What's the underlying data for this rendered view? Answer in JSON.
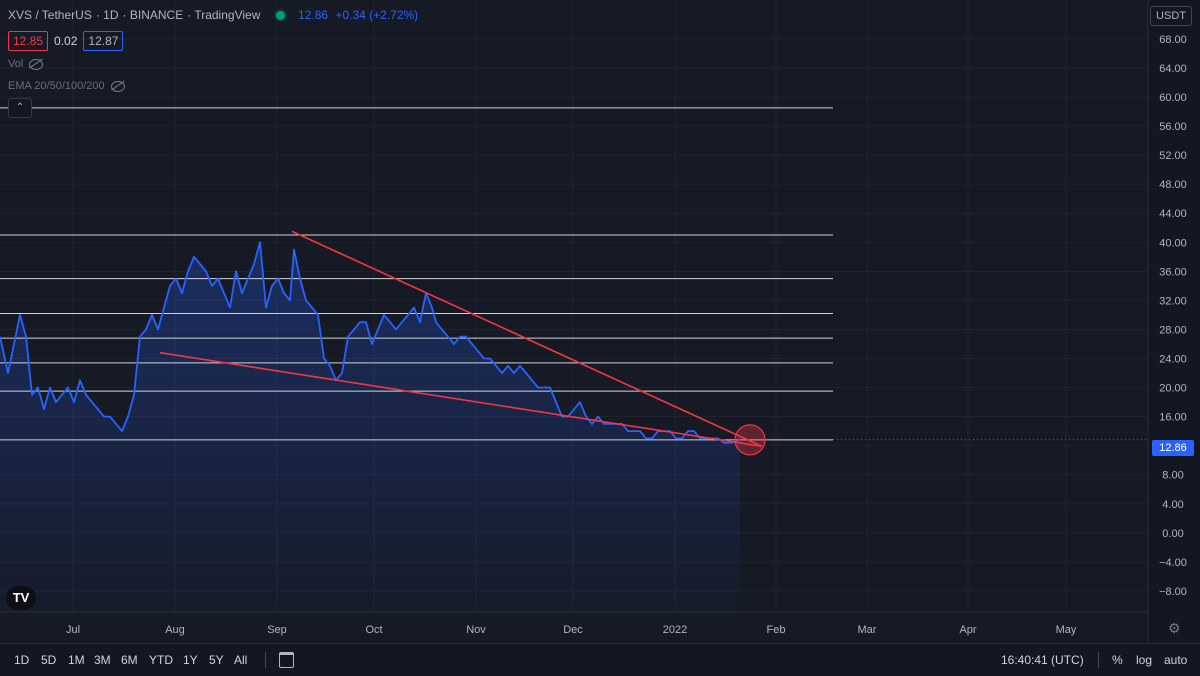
{
  "header": {
    "symbol": "XVS / TetherUS",
    "interval": "1D",
    "exchange": "BINANCE",
    "source": "TradingView",
    "last": "12.86",
    "change": "+0.34 (+2.72%)",
    "bid": "12.85",
    "spread": "0.02",
    "ask": "12.87",
    "ind_vol": "Vol",
    "ind_ema": "EMA 20/50/100/200",
    "currency": "USDT",
    "logo": "TV",
    "status_color": "#089981"
  },
  "colors": {
    "line": "#2962ff",
    "trend": "#f23645",
    "level": "#d1d4dc"
  },
  "chart_data": {
    "type": "line",
    "xlim": [
      0,
      1148
    ],
    "ylim": [
      -10.9,
      71.7
    ],
    "x_axis_labels": [
      {
        "label": "Jul",
        "x": 73
      },
      {
        "label": "Aug",
        "x": 175
      },
      {
        "label": "Sep",
        "x": 277
      },
      {
        "label": "Oct",
        "x": 374
      },
      {
        "label": "Nov",
        "x": 476
      },
      {
        "label": "Dec",
        "x": 573
      },
      {
        "label": "2022",
        "x": 675
      },
      {
        "label": "Feb",
        "x": 776
      },
      {
        "label": "Mar",
        "x": 867
      },
      {
        "label": "Apr",
        "x": 968
      },
      {
        "label": "May",
        "x": 1066
      }
    ],
    "y_ticks": [
      "68.00",
      "64.00",
      "60.00",
      "56.00",
      "52.00",
      "48.00",
      "44.00",
      "40.00",
      "36.00",
      "32.00",
      "28.00",
      "24.00",
      "20.00",
      "16.00",
      "12.00",
      "8.00",
      "4.00",
      "0.00",
      "−4.00",
      "−8.00"
    ],
    "y_tick_values": [
      68,
      64,
      60,
      56,
      52,
      48,
      44,
      40,
      36,
      32,
      28,
      24,
      20,
      16,
      12,
      8,
      4,
      0,
      -4,
      -8
    ],
    "current_price": 12.86,
    "current_price_label": "12.86",
    "series": [
      {
        "x": [
          0,
          8,
          14,
          20,
          26,
          32,
          38,
          44,
          50,
          56,
          62,
          68,
          74,
          80,
          86,
          92,
          98,
          104,
          110,
          116,
          122,
          128,
          134,
          140,
          146,
          152,
          158,
          164,
          170,
          176,
          182,
          188,
          194,
          200,
          206,
          212,
          218,
          224,
          230,
          236,
          242,
          248,
          254,
          260,
          266,
          272,
          278,
          284,
          290,
          294,
          300,
          306,
          312,
          318,
          324,
          330,
          336,
          342,
          348,
          354,
          360,
          366,
          372,
          378,
          384,
          390,
          396,
          402,
          408,
          414,
          420,
          426,
          432,
          436,
          442,
          448,
          454,
          460,
          466,
          472,
          478,
          484,
          490,
          496,
          502,
          508,
          514,
          520,
          526,
          532,
          538,
          544,
          550,
          556,
          562,
          568,
          574,
          580,
          586,
          592,
          598,
          604,
          610,
          616,
          622,
          628,
          634,
          640,
          646,
          652,
          658,
          664,
          670,
          676,
          682,
          688,
          694,
          700,
          706,
          712,
          718,
          724,
          730,
          736,
          740
        ],
        "y": [
          27,
          22,
          26,
          30,
          27,
          19,
          20,
          17,
          20,
          18,
          19,
          20,
          18,
          21,
          19,
          18,
          17,
          16,
          16,
          15,
          14,
          16,
          19,
          27,
          28,
          30,
          28,
          31,
          34,
          35,
          33,
          36,
          38,
          37,
          36,
          34,
          35,
          33,
          31,
          36,
          33,
          35,
          37,
          40,
          31,
          34,
          35,
          33,
          32,
          39,
          35,
          32,
          31,
          30,
          24,
          23,
          21,
          22,
          27,
          28,
          29,
          29,
          26,
          28,
          30,
          29,
          28,
          29,
          30,
          31,
          29,
          33,
          31,
          29,
          28,
          27,
          26,
          27,
          27,
          26,
          25,
          24,
          24,
          23,
          22,
          23,
          22,
          23,
          22,
          21,
          20,
          20,
          20,
          18,
          16,
          16,
          17,
          18,
          16,
          15,
          16,
          15,
          15,
          15,
          15,
          14,
          14,
          14,
          13,
          13,
          14,
          14,
          14,
          13,
          13,
          14,
          14,
          13,
          13,
          13,
          13,
          12.4,
          12.4,
          12.5,
          12.86
        ]
      }
    ],
    "levels": [
      58.5,
      41.0,
      35.0,
      30.2,
      26.8,
      23.4,
      19.5,
      12.8
    ],
    "trendlines": [
      {
        "from": [
          292,
          41.5
        ],
        "to": [
          762,
          11.9
        ]
      },
      {
        "from": [
          160,
          24.8
        ],
        "to": [
          762,
          11.9
        ]
      }
    ],
    "breakout_circle": {
      "x": 750,
      "y": 12.8
    }
  },
  "range_buttons": [
    "1D",
    "5D",
    "1M",
    "3M",
    "6M",
    "YTD",
    "1Y",
    "5Y",
    "All"
  ],
  "clock": "16:40:41 (UTC)",
  "scale_buttons": [
    "%",
    "log",
    "auto"
  ]
}
